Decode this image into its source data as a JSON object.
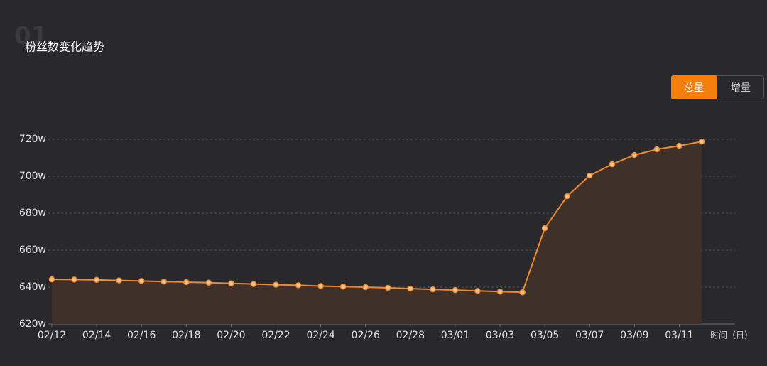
{
  "watermark": "01",
  "toggle": {
    "options": [
      "总量",
      "增量"
    ],
    "active": "总量"
  },
  "chart_data": {
    "type": "line",
    "title": "粉丝数变化趋势",
    "x_label": "时间（日）",
    "categories": [
      "02/12",
      null,
      "02/14",
      null,
      "02/16",
      null,
      "02/18",
      null,
      "02/20",
      null,
      "02/22",
      null,
      "02/24",
      null,
      "02/26",
      null,
      "02/28",
      null,
      "03/01",
      null,
      "03/03",
      null,
      "03/05",
      null,
      "03/07",
      null,
      "03/09",
      null,
      "03/11",
      null
    ],
    "series": [
      {
        "name": "粉丝数",
        "color": "#f08a2c",
        "values": [
          644.2,
          644.1,
          643.9,
          643.6,
          643.3,
          643.0,
          642.7,
          642.4,
          642.0,
          641.7,
          641.3,
          641.0,
          640.6,
          640.3,
          640.0,
          639.6,
          639.2,
          638.8,
          638.4,
          638.0,
          637.6,
          637.2,
          671.9,
          689.2,
          700.4,
          706.5,
          711.5,
          714.6,
          716.5,
          718.8
        ]
      }
    ],
    "ylim": [
      620,
      720
    ],
    "yticks": [
      {
        "value": 620,
        "label": "620w"
      },
      {
        "value": 640,
        "label": "640w"
      },
      {
        "value": 660,
        "label": "660w"
      },
      {
        "value": 680,
        "label": "680w"
      },
      {
        "value": 700,
        "label": "700w"
      },
      {
        "value": 720,
        "label": "720w"
      }
    ],
    "grid": true
  }
}
